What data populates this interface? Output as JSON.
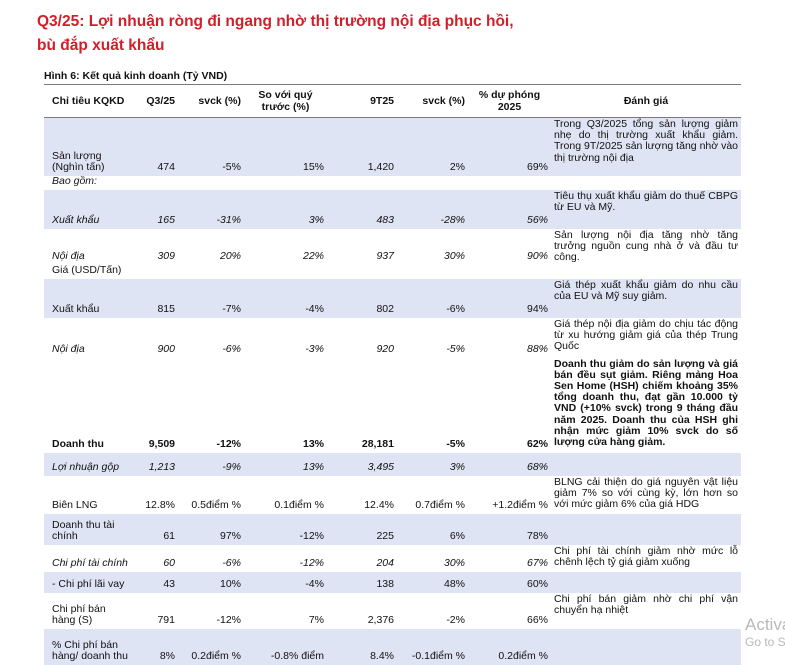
{
  "heading": {
    "line1": "Q3/25: Lợi nhuận ròng đi ngang nhờ thị trường nội địa phục hồi,",
    "line2": "bù đắp xuất khẩu"
  },
  "figure_title": "Hình 6: Kết quả kinh doanh (Tỷ VND)",
  "table": {
    "headers": [
      "Chỉ tiêu KQKD",
      "Q3/25",
      "svck (%)",
      "So với quý trước (%)",
      "9T25",
      "svck (%)",
      "% dự phóng 2025",
      "Đánh giá"
    ],
    "rows": [
      {
        "label": "Sản lượng (Nghìn tấn)",
        "q3": "474",
        "yoy": "-5%",
        "qoq": "15%",
        "ytd": "1,420",
        "ytd_yoy": "2%",
        "fc": "69%",
        "note": "Trong Q3/2025 tổng sản lượng giảm nhẹ do thị trường xuất khẩu giảm. Trong 9T/2025 sản lượng tăng nhờ vào thị trường nội địa"
      },
      {
        "label": "Bao gồm:",
        "q3": "",
        "yoy": "",
        "qoq": "",
        "ytd": "",
        "ytd_yoy": "",
        "fc": "",
        "note": ""
      },
      {
        "label": "Xuất khẩu",
        "q3": "165",
        "yoy": "-31%",
        "qoq": "3%",
        "ytd": "483",
        "ytd_yoy": "-28%",
        "fc": "56%",
        "note": "Tiêu thụ xuất khẩu giảm do thuế CBPG từ EU và Mỹ."
      },
      {
        "label": "Nội địa",
        "q3": "309",
        "yoy": "20%",
        "qoq": "22%",
        "ytd": "937",
        "ytd_yoy": "30%",
        "fc": "90%",
        "note": "Sản lượng nội địa tăng nhờ tăng trưởng nguồn cung nhà ở và đầu tư công."
      },
      {
        "label": "Giá (USD/Tấn)",
        "q3": "",
        "yoy": "",
        "qoq": "",
        "ytd": "",
        "ytd_yoy": "",
        "fc": "",
        "note": ""
      },
      {
        "label": "Xuất khẩu",
        "q3": "815",
        "yoy": "-7%",
        "qoq": "-4%",
        "ytd": "802",
        "ytd_yoy": "-6%",
        "fc": "94%",
        "note": "Giá thép xuất khẩu giảm do nhu cầu của EU và Mỹ suy giảm."
      },
      {
        "label": "Nội địa",
        "q3": "900",
        "yoy": "-6%",
        "qoq": "-3%",
        "ytd": "920",
        "ytd_yoy": "-5%",
        "fc": "88%",
        "note": "Giá thép nội địa giảm do chịu tác động từ xu hướng giảm giá của thép Trung Quốc"
      },
      {
        "label": "Doanh thu",
        "q3": "9,509",
        "yoy": "-12%",
        "qoq": "13%",
        "ytd": "28,181",
        "ytd_yoy": "-5%",
        "fc": "62%",
        "note": "Doanh thu giảm do sản lượng và giá bán đều sụt giảm. Riêng mảng Hoa Sen Home (HSH) chiếm khoảng 35% tổng doanh thu, đạt gần 10.000 tỷ VND (+10% svck) trong 9 tháng đầu năm 2025. Doanh thu của HSH ghi nhận mức giảm 10% svck do số lượng cửa hàng giảm."
      },
      {
        "label": "Lợi nhuận gộp",
        "q3": "1,213",
        "yoy": "-9%",
        "qoq": "13%",
        "ytd": "3,495",
        "ytd_yoy": "3%",
        "fc": "68%",
        "note": ""
      },
      {
        "label": "Biên LNG",
        "q3": "12.8%",
        "yoy": "0.5điểm %",
        "qoq": "0.1điểm %",
        "ytd": "12.4%",
        "ytd_yoy": "0.7điểm %",
        "fc": "+1.2điểm %",
        "note": "BLNG cải thiện do giá nguyên vật liệu giảm 7% so với cùng kỳ, lớn hơn so với mức giảm 6% của giá HDG"
      },
      {
        "label": "Doanh thu tài chính",
        "q3": "61",
        "yoy": "97%",
        "qoq": "-12%",
        "ytd": "225",
        "ytd_yoy": "6%",
        "fc": "78%",
        "note": ""
      },
      {
        "label": "Chi phí tài chính",
        "q3": "60",
        "yoy": "-6%",
        "qoq": "-12%",
        "ytd": "204",
        "ytd_yoy": "30%",
        "fc": "67%",
        "note": "Chi phí tài chính giảm nhờ mức lỗ chênh lệch tỷ giá giảm xuống"
      },
      {
        "label": "- Chi phí lãi vay",
        "q3": "43",
        "yoy": "10%",
        "qoq": "-4%",
        "ytd": "138",
        "ytd_yoy": "48%",
        "fc": "60%",
        "note": ""
      },
      {
        "label": "Chi phí bán hàng (S)",
        "q3": "791",
        "yoy": "-12%",
        "qoq": "7%",
        "ytd": "2,376",
        "ytd_yoy": "-2%",
        "fc": "66%",
        "note": "Chi phí bán giảm nhờ chi phí vận chuyển hạ nhiệt"
      },
      {
        "label": "% Chi phí bán hàng/ doanh thu",
        "q3": "8%",
        "yoy": "0.2điểm %",
        "qoq": "-0.8% điểm",
        "ytd": "8.4%",
        "ytd_yoy": "-0.1điểm %",
        "fc": "0.2điểm %",
        "note": ""
      }
    ]
  },
  "watermark": {
    "line1": "Activate Windows",
    "line2": "Go to Settings to activate Windows."
  }
}
